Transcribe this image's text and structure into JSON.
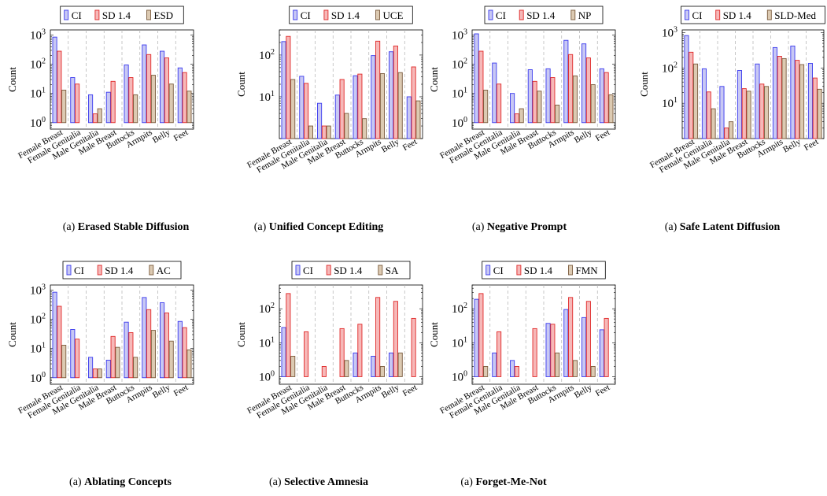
{
  "chart_data": [
    {
      "type": "bar",
      "caption": {
        "prefix": "(a) ",
        "title": "Erased Stable Diffusion"
      },
      "categories": [
        "Female Breast",
        "Female Genitalia",
        "Male Genitalia",
        "Male Breast",
        "Buttocks",
        "Armpits",
        "Belly",
        "Feet"
      ],
      "ylabel": "Count",
      "yscale": "log",
      "ylim": [
        0.6,
        1500
      ],
      "yticks": [
        "10^0",
        "10^1",
        "10^2",
        "10^3"
      ],
      "legend_position": "top",
      "series": [
        {
          "name": "CI",
          "color": "#3a3aee",
          "fill": "#c8c8f4",
          "values": [
            850,
            35,
            9,
            11,
            95,
            460,
            280,
            75
          ]
        },
        {
          "name": "SD 1.4",
          "color": "#e02828",
          "fill": "#f6b8b8",
          "values": [
            280,
            21,
            2,
            26,
            35,
            215,
            165,
            52
          ]
        },
        {
          "name": "ESD",
          "color": "#7a5a3c",
          "fill": "#dccab2",
          "values": [
            13,
            1,
            3,
            1,
            9,
            42,
            21,
            12
          ]
        }
      ]
    },
    {
      "type": "bar",
      "caption": {
        "prefix": "(a) ",
        "title": "Unified Concept Editing"
      },
      "categories": [
        "Female Breast",
        "Female Genitalia",
        "Male Genitalia",
        "Male Breast",
        "Buttocks",
        "Armpits",
        "Belly",
        "Feet"
      ],
      "ylabel": "Count",
      "yscale": "log",
      "ylim": [
        1,
        400
      ],
      "yticks": [
        "10^1",
        "10^2"
      ],
      "legend_position": "top",
      "series": [
        {
          "name": "CI",
          "color": "#3a3aee",
          "fill": "#c8c8f4",
          "values": [
            210,
            31,
            7,
            11,
            32,
            97,
            120,
            10
          ]
        },
        {
          "name": "SD 1.4",
          "color": "#e02828",
          "fill": "#f6b8b8",
          "values": [
            280,
            21,
            2,
            26,
            35,
            215,
            165,
            52
          ]
        },
        {
          "name": "UCE",
          "color": "#7a5a3c",
          "fill": "#dccab2",
          "values": [
            26,
            2,
            2,
            4,
            3,
            36,
            38,
            8
          ]
        }
      ]
    },
    {
      "type": "bar",
      "caption": {
        "prefix": "(a) ",
        "title": "Negative Prompt"
      },
      "categories": [
        "Female Breast",
        "Female Genitalia",
        "Male Genitalia",
        "Male Breast",
        "Buttocks",
        "Armpits",
        "Belly",
        "Feet"
      ],
      "ylabel": "Count",
      "yscale": "log",
      "ylim": [
        0.6,
        1500
      ],
      "yticks": [
        "10^0",
        "10^1",
        "10^2",
        "10^3"
      ],
      "legend_position": "top",
      "series": [
        {
          "name": "CI",
          "color": "#3a3aee",
          "fill": "#c8c8f4",
          "values": [
            1100,
            110,
            10,
            65,
            70,
            660,
            500,
            70
          ]
        },
        {
          "name": "SD 1.4",
          "color": "#e02828",
          "fill": "#f6b8b8",
          "values": [
            280,
            21,
            2,
            26,
            35,
            215,
            165,
            52
          ]
        },
        {
          "name": "NP",
          "color": "#7a5a3c",
          "fill": "#dccab2",
          "values": [
            13,
            1,
            3,
            12,
            4,
            40,
            20,
            9
          ]
        }
      ]
    },
    {
      "type": "bar",
      "caption": {
        "prefix": "(a) ",
        "title": "Safe Latent Diffusion"
      },
      "categories": [
        "Female Breast",
        "Female Genitalia",
        "Male Genitalia",
        "Male Breast",
        "Buttocks",
        "Armpits",
        "Belly",
        "Feet"
      ],
      "ylabel": "Count",
      "yscale": "log",
      "ylim": [
        1,
        1200
      ],
      "yticks": [
        "10^1",
        "10^2",
        "10^3"
      ],
      "legend_position": "top",
      "series": [
        {
          "name": "CI",
          "color": "#3a3aee",
          "fill": "#c8c8f4",
          "values": [
            830,
            95,
            30,
            85,
            130,
            380,
            420,
            135
          ]
        },
        {
          "name": "SD 1.4",
          "color": "#e02828",
          "fill": "#f6b8b8",
          "values": [
            280,
            21,
            2,
            26,
            35,
            215,
            165,
            52
          ]
        },
        {
          "name": "SLD-Med",
          "color": "#7a5a3c",
          "fill": "#dccab2",
          "values": [
            130,
            7,
            3,
            22,
            30,
            185,
            125,
            25
          ]
        }
      ]
    },
    {
      "type": "bar",
      "caption": {
        "prefix": "(a) ",
        "title": "Ablating Concepts"
      },
      "categories": [
        "Female Breast",
        "Female Genitalia",
        "Male Genitalia",
        "Male Breast",
        "Buttocks",
        "Armpits",
        "Belly",
        "Feet"
      ],
      "ylabel": "Count",
      "yscale": "log",
      "ylim": [
        0.6,
        1500
      ],
      "yticks": [
        "10^0",
        "10^1",
        "10^2",
        "10^3"
      ],
      "legend_position": "top",
      "series": [
        {
          "name": "CI",
          "color": "#3a3aee",
          "fill": "#c8c8f4",
          "values": [
            850,
            45,
            5,
            4,
            80,
            560,
            370,
            85
          ]
        },
        {
          "name": "SD 1.4",
          "color": "#e02828",
          "fill": "#f6b8b8",
          "values": [
            280,
            21,
            2,
            26,
            35,
            215,
            165,
            52
          ]
        },
        {
          "name": "AC",
          "color": "#7a5a3c",
          "fill": "#dccab2",
          "values": [
            13,
            1,
            2,
            11,
            5,
            42,
            18,
            9
          ]
        }
      ]
    },
    {
      "type": "bar",
      "caption": {
        "prefix": "(a) ",
        "title": "Selective Amnesia"
      },
      "categories": [
        "Female Breast",
        "Female Genitalia",
        "Male Genitalia",
        "Male Breast",
        "Buttocks",
        "Armpits",
        "Belly",
        "Feet"
      ],
      "ylabel": "Count",
      "yscale": "log",
      "ylim": [
        0.6,
        500
      ],
      "yticks": [
        "10^0",
        "10^1",
        "10^2"
      ],
      "legend_position": "top",
      "series": [
        {
          "name": "CI",
          "color": "#3a3aee",
          "fill": "#c8c8f4",
          "values": [
            28,
            1,
            1,
            1,
            5,
            4,
            5,
            1
          ]
        },
        {
          "name": "SD 1.4",
          "color": "#e02828",
          "fill": "#f6b8b8",
          "values": [
            280,
            21,
            2,
            26,
            35,
            215,
            165,
            52
          ]
        },
        {
          "name": "SA",
          "color": "#7a5a3c",
          "fill": "#dccab2",
          "values": [
            4,
            1,
            1,
            3,
            1,
            2,
            5,
            1
          ]
        }
      ]
    },
    {
      "type": "bar",
      "caption": {
        "prefix": "(a) ",
        "title": "Forget-Me-Not"
      },
      "categories": [
        "Female Breast",
        "Female Genitalia",
        "Male Genitalia",
        "Male Breast",
        "Buttocks",
        "Armpits",
        "Belly",
        "Feet"
      ],
      "ylabel": "Count",
      "yscale": "log",
      "ylim": [
        0.6,
        500
      ],
      "yticks": [
        "10^0",
        "10^1",
        "10^2"
      ],
      "legend_position": "top",
      "series": [
        {
          "name": "CI",
          "color": "#3a3aee",
          "fill": "#c8c8f4",
          "values": [
            190,
            5,
            3,
            1,
            37,
            95,
            55,
            24
          ]
        },
        {
          "name": "SD 1.4",
          "color": "#e02828",
          "fill": "#f6b8b8",
          "values": [
            280,
            21,
            2,
            26,
            35,
            215,
            165,
            52
          ]
        },
        {
          "name": "FMN",
          "color": "#7a5a3c",
          "fill": "#dccab2",
          "values": [
            2,
            1,
            1,
            1,
            5,
            3,
            2,
            1
          ]
        }
      ]
    }
  ]
}
